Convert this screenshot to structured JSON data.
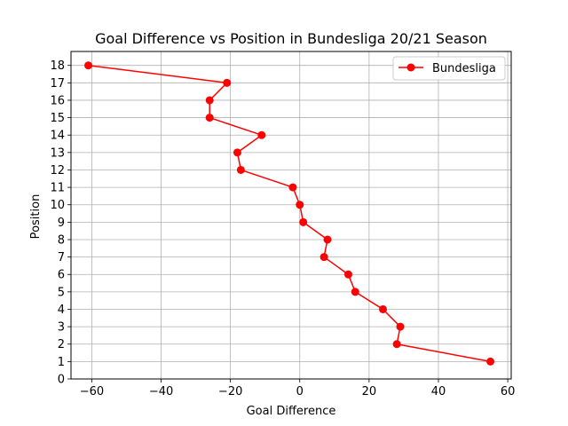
{
  "chart_data": {
    "type": "line",
    "title": "Goal Difference vs Position in Bundesliga 20/21 Season",
    "xlabel": "Goal Difference",
    "ylabel": "Position",
    "xlim": [
      -66,
      61
    ],
    "ylim": [
      0,
      18.8
    ],
    "xticks": [
      -60,
      -40,
      -20,
      0,
      20,
      40,
      60
    ],
    "yticks": [
      0,
      1,
      2,
      3,
      4,
      5,
      6,
      7,
      8,
      9,
      10,
      11,
      12,
      13,
      14,
      15,
      16,
      17,
      18
    ],
    "grid": true,
    "legend_position": "top-right",
    "series": [
      {
        "name": "Bundesliga",
        "color": "#ff0000",
        "marker": "circle",
        "points": [
          {
            "x": 55,
            "y": 1
          },
          {
            "x": 28,
            "y": 2
          },
          {
            "x": 29,
            "y": 3
          },
          {
            "x": 24,
            "y": 4
          },
          {
            "x": 16,
            "y": 5
          },
          {
            "x": 14,
            "y": 6
          },
          {
            "x": 7,
            "y": 7
          },
          {
            "x": 8,
            "y": 8
          },
          {
            "x": 1,
            "y": 9
          },
          {
            "x": 0,
            "y": 10
          },
          {
            "x": -2,
            "y": 11
          },
          {
            "x": -17,
            "y": 12
          },
          {
            "x": -18,
            "y": 13
          },
          {
            "x": -11,
            "y": 14
          },
          {
            "x": -26,
            "y": 15
          },
          {
            "x": -26,
            "y": 16
          },
          {
            "x": -21,
            "y": 17
          },
          {
            "x": -61,
            "y": 18
          }
        ]
      }
    ]
  }
}
